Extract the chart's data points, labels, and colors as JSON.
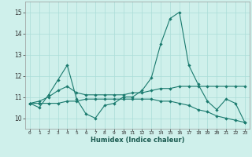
{
  "xlabel": "Humidex (Indice chaleur)",
  "xlim": [
    -0.5,
    23.5
  ],
  "ylim": [
    9.5,
    15.5
  ],
  "yticks": [
    10,
    11,
    12,
    13,
    14,
    15
  ],
  "xtick_labels": [
    "0",
    "1",
    "2",
    "3",
    "4",
    "5",
    "6",
    "7",
    "8",
    "9",
    "10",
    "11",
    "12",
    "13",
    "14",
    "15",
    "16",
    "17",
    "18",
    "19",
    "20",
    "21",
    "22",
    "23"
  ],
  "background_color": "#cff0eb",
  "line_color": "#1a7a6e",
  "grid_color": "#aaddd8",
  "series": [
    [
      10.7,
      10.5,
      11.1,
      11.8,
      12.5,
      10.9,
      10.2,
      10.0,
      10.6,
      10.7,
      11.0,
      11.0,
      11.3,
      11.9,
      13.5,
      14.7,
      15.0,
      12.5,
      11.6,
      10.8,
      10.4,
      10.9,
      10.7,
      9.8
    ],
    [
      10.7,
      10.8,
      11.0,
      11.3,
      11.5,
      11.2,
      11.1,
      11.1,
      11.1,
      11.1,
      11.1,
      11.2,
      11.2,
      11.3,
      11.4,
      11.4,
      11.5,
      11.5,
      11.5,
      11.5,
      11.5,
      11.5,
      11.5,
      11.5
    ],
    [
      10.7,
      10.7,
      10.7,
      10.7,
      10.8,
      10.8,
      10.9,
      10.9,
      10.9,
      10.9,
      10.9,
      10.9,
      10.9,
      10.9,
      10.8,
      10.8,
      10.7,
      10.6,
      10.4,
      10.3,
      10.1,
      10.0,
      9.9,
      9.8
    ]
  ]
}
